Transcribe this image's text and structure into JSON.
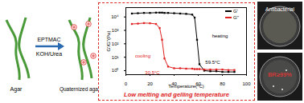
{
  "chart_data": {
    "type": "line",
    "x": [
      5,
      10,
      15,
      20,
      25,
      28,
      30,
      32,
      35,
      40,
      45,
      50,
      55,
      57,
      59,
      61,
      65,
      70,
      75,
      80,
      85,
      90
    ],
    "series": [
      {
        "name": "G'",
        "color": "#000000",
        "marker": "square",
        "values": [
          18000,
          19000,
          20000,
          20000,
          21000,
          21000,
          21000,
          20000,
          20000,
          19000,
          18000,
          17000,
          15000,
          9000,
          200,
          3,
          1,
          0.9,
          0.9,
          0.8,
          0.8,
          0.8
        ]
      },
      {
        "name": "G''",
        "color": "#e02020",
        "marker": "square",
        "values": [
          3000,
          3200,
          3500,
          3400,
          3000,
          1500,
          200,
          8,
          2,
          1.5,
          1.5,
          1.4,
          1.4,
          1.3,
          1.3,
          1.3,
          1.2,
          1.2,
          1.2,
          1.2,
          1.1,
          1.1
        ]
      }
    ],
    "x_label": "Temperature(°C)",
    "y_label": "G'/G''(Pa)",
    "xlim": [
      0,
      100
    ],
    "xticks": [
      0,
      20,
      40,
      60,
      80,
      100
    ],
    "ylim": [
      0.5,
      50000
    ],
    "yticks": [
      {
        "value": 1,
        "label": "10⁰"
      },
      {
        "value": 10,
        "label": "10¹"
      },
      {
        "value": 100,
        "label": "10²"
      },
      {
        "value": 1000,
        "label": "10³"
      },
      {
        "value": 10000,
        "label": "10⁴"
      }
    ],
    "log": "y",
    "legend": "top-right",
    "annotations": [
      {
        "text": "heating",
        "x": 78,
        "y": 400,
        "color": "#000000"
      },
      {
        "text": "cooling",
        "x": 14,
        "y": 12,
        "color": "#e02020"
      },
      {
        "text": "30.5°C",
        "x": 22,
        "y": 0.7,
        "color": "#e02020"
      },
      {
        "text": "59.5°C",
        "x": 72,
        "y": 4,
        "color": "#000000"
      }
    ]
  },
  "scheme": {
    "from": "Agar",
    "reagent": "EPTMAC",
    "conditions": "KOH/Urea",
    "to": "Quaternized agar"
  },
  "caption": "Low melting and gelling temperature",
  "photos": {
    "top": "Antibacterial",
    "bottom": "BR≥99%"
  }
}
